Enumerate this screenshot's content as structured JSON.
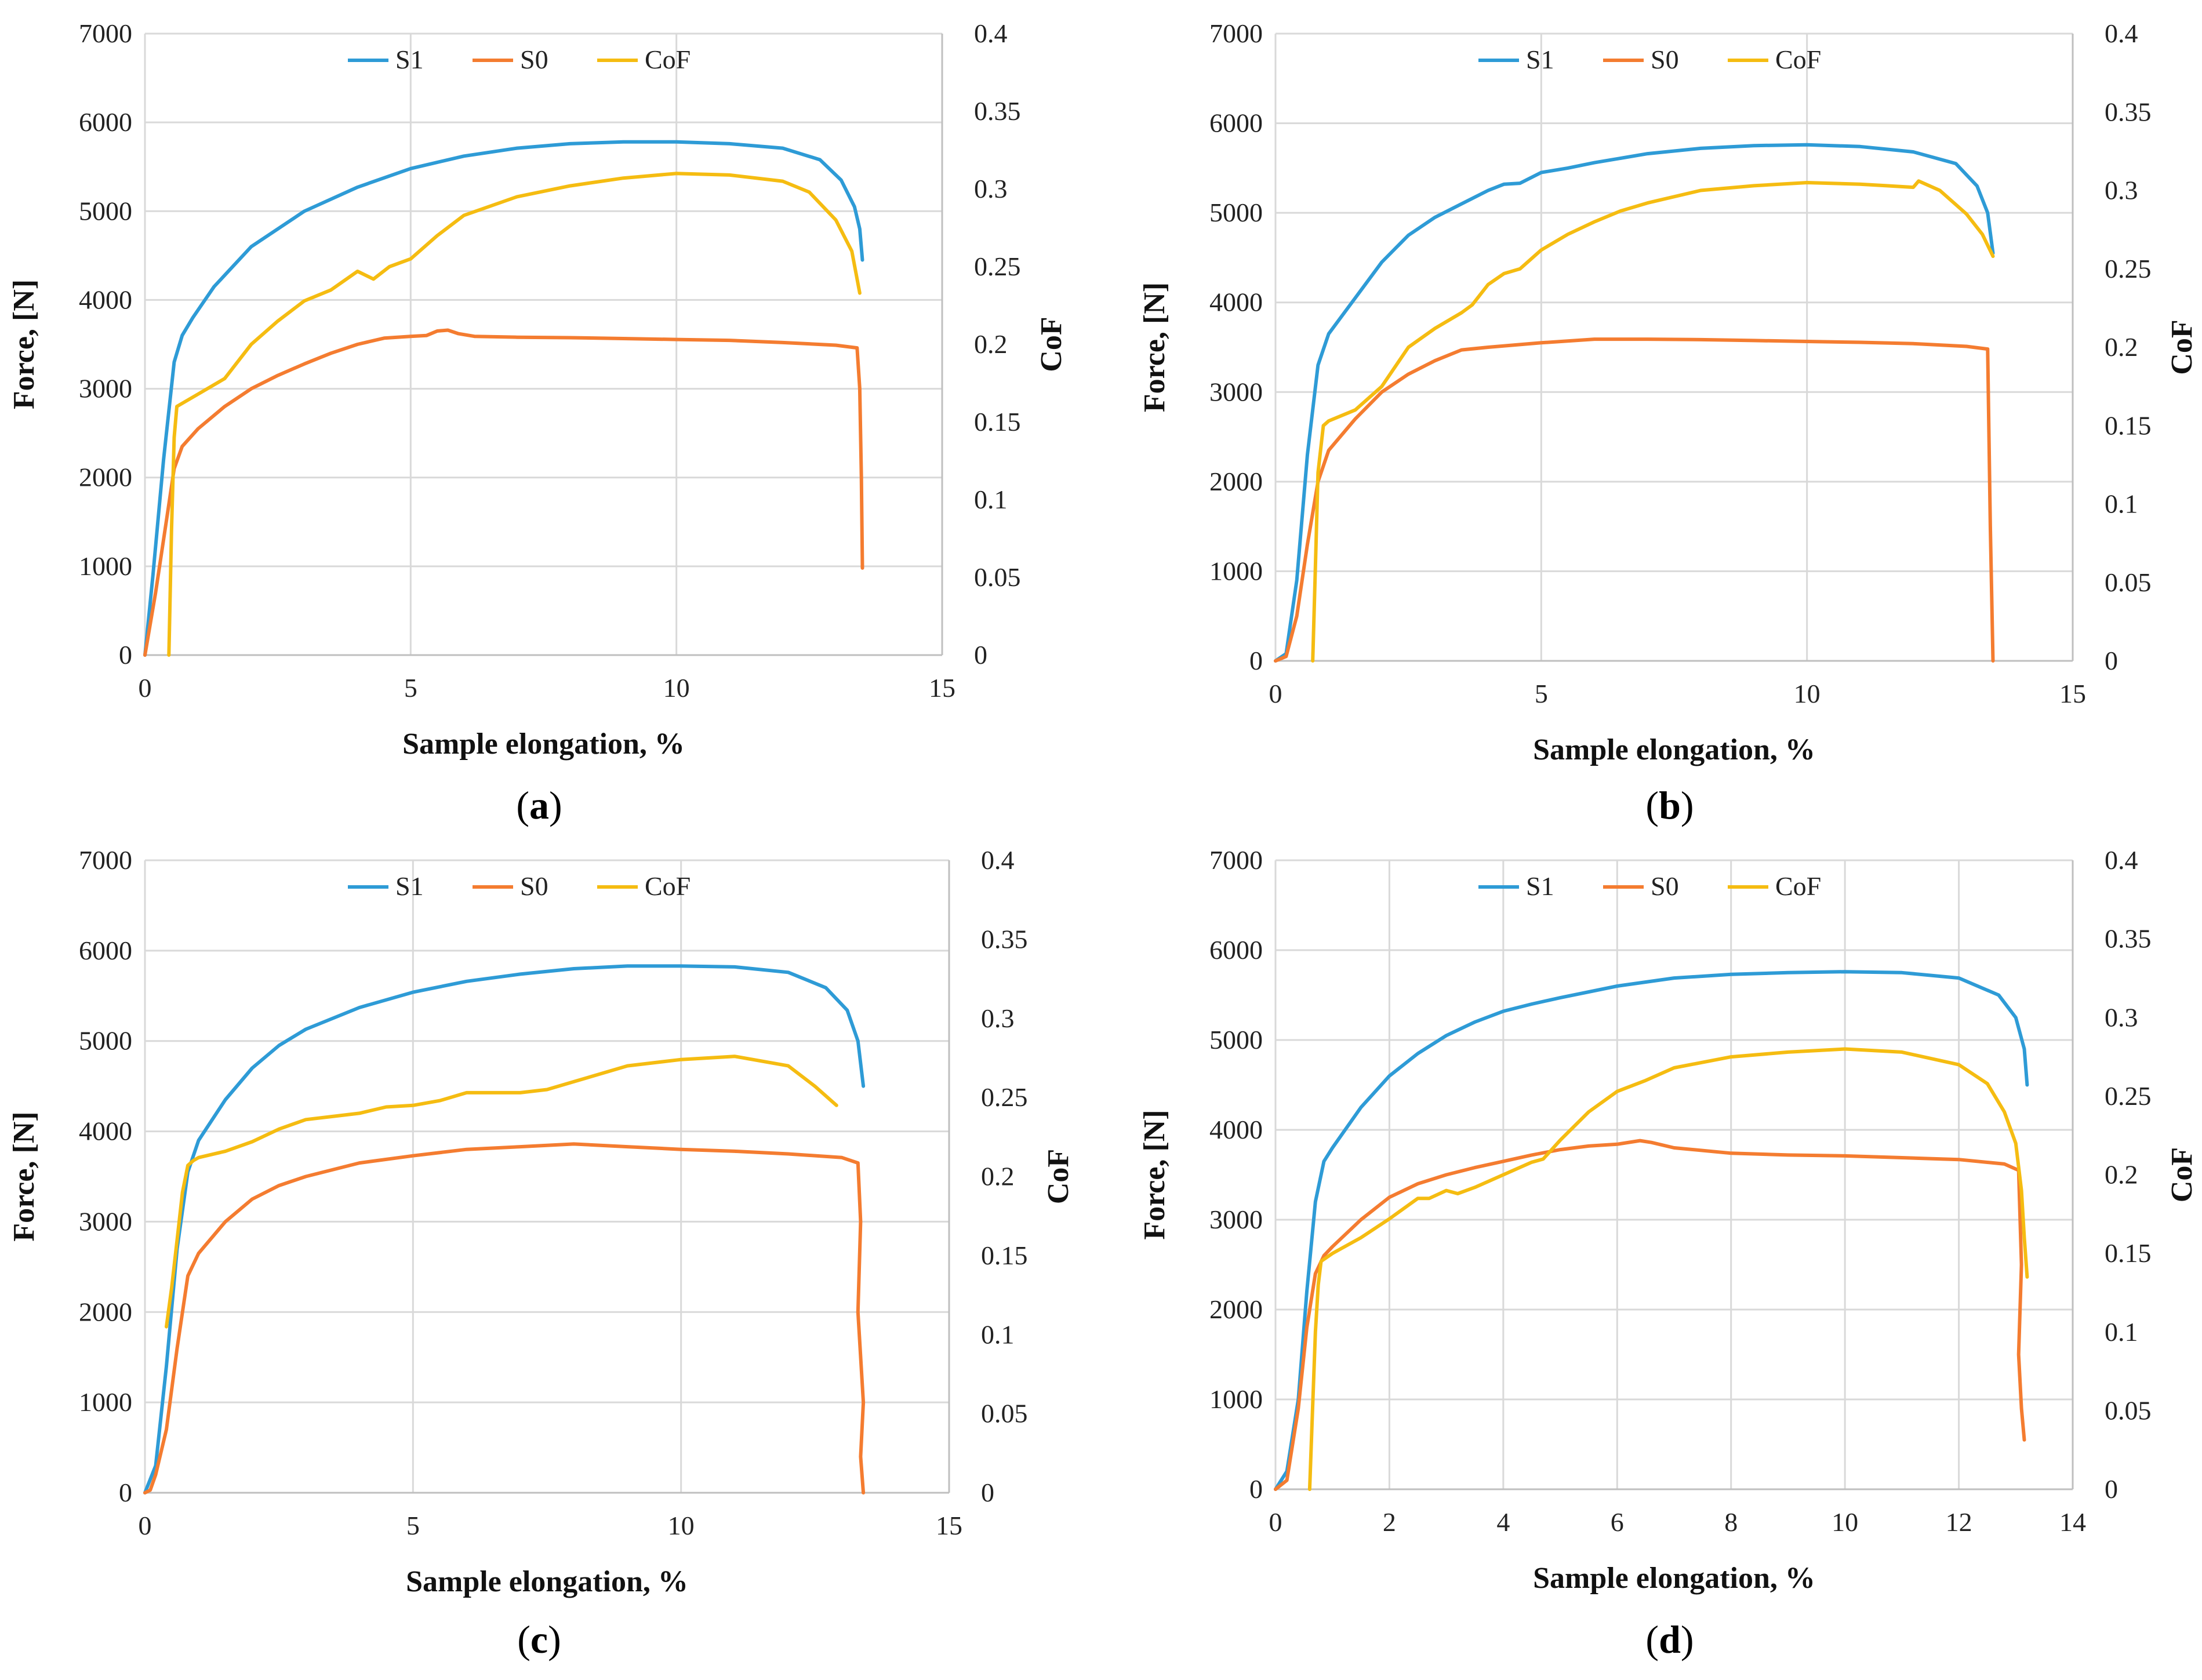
{
  "colors": {
    "S1": "#2E9BD6",
    "S0": "#F47C30",
    "CoF": "#F5BC11",
    "grid": "#D9D9D9",
    "axis": "#BFBFBF"
  },
  "chart_data": [
    {
      "id": "a",
      "type": "line",
      "label_open": "(",
      "label_letter": "a",
      "label_close": ")",
      "xlabel": "Sample elongation, %",
      "ylabel": "Force, [N]",
      "y2label": "CoF",
      "xlim": [
        0,
        15
      ],
      "xticks": [
        0,
        5,
        10,
        15
      ],
      "ylim": [
        0,
        7000
      ],
      "yticks": [
        0,
        1000,
        2000,
        3000,
        4000,
        5000,
        6000,
        7000
      ],
      "y2lim": [
        0,
        0.4
      ],
      "y2ticks": [
        0,
        0.05,
        0.1,
        0.15,
        0.2,
        0.25,
        0.3,
        0.35,
        0.4
      ],
      "legend": [
        "S1",
        "S0",
        "CoF"
      ],
      "series": [
        {
          "name": "S1",
          "axis": "y",
          "x": [
            0,
            0.15,
            0.35,
            0.55,
            0.7,
            0.9,
            1.3,
            2,
            3,
            4,
            5,
            6,
            7,
            8,
            9,
            10,
            11,
            12,
            12.7,
            13.1,
            13.35,
            13.45,
            13.5
          ],
          "y": [
            0,
            900,
            2200,
            3300,
            3600,
            3800,
            4150,
            4600,
            5000,
            5270,
            5480,
            5620,
            5710,
            5760,
            5780,
            5780,
            5760,
            5710,
            5580,
            5350,
            5050,
            4800,
            4450
          ]
        },
        {
          "name": "S0",
          "axis": "y",
          "x": [
            0,
            0.2,
            0.4,
            0.55,
            0.7,
            1,
            1.5,
            2,
            2.5,
            3,
            3.5,
            4,
            4.5,
            5,
            5.3,
            5.5,
            5.7,
            5.9,
            6.2,
            7,
            8,
            9,
            10,
            11,
            12,
            13,
            13.4,
            13.45,
            13.48,
            13.5
          ],
          "y": [
            0,
            700,
            1500,
            2100,
            2350,
            2550,
            2800,
            3000,
            3150,
            3280,
            3400,
            3500,
            3570,
            3590,
            3600,
            3650,
            3660,
            3620,
            3590,
            3580,
            3575,
            3565,
            3555,
            3545,
            3520,
            3490,
            3460,
            3000,
            2000,
            980
          ]
        },
        {
          "name": "CoF",
          "axis": "y2",
          "x": [
            0.45,
            0.5,
            0.55,
            0.6,
            0.7,
            1,
            1.5,
            2,
            2.5,
            3,
            3.5,
            4,
            4.3,
            4.6,
            5,
            5.5,
            6,
            7,
            8,
            9,
            10,
            11,
            12,
            12.5,
            13,
            13.3,
            13.45
          ],
          "y": [
            0,
            0.08,
            0.14,
            0.16,
            0.162,
            0.168,
            0.178,
            0.2,
            0.215,
            0.228,
            0.235,
            0.247,
            0.242,
            0.25,
            0.255,
            0.27,
            0.283,
            0.295,
            0.302,
            0.307,
            0.31,
            0.309,
            0.305,
            0.298,
            0.28,
            0.26,
            0.233
          ]
        }
      ]
    },
    {
      "id": "b",
      "type": "line",
      "label_open": "(",
      "label_letter": "b",
      "label_close": ")",
      "xlabel": "Sample elongation, %",
      "ylabel": "Force, [N]",
      "y2label": "CoF",
      "xlim": [
        0,
        15
      ],
      "xticks": [
        0,
        5,
        10,
        15
      ],
      "ylim": [
        0,
        7000
      ],
      "yticks": [
        0,
        1000,
        2000,
        3000,
        4000,
        5000,
        6000,
        7000
      ],
      "y2lim": [
        0,
        0.4
      ],
      "y2ticks": [
        0,
        0.05,
        0.1,
        0.15,
        0.2,
        0.25,
        0.3,
        0.35,
        0.4
      ],
      "legend": [
        "S1",
        "S0",
        "CoF"
      ],
      "series": [
        {
          "name": "S1",
          "axis": "y",
          "x": [
            0,
            0.2,
            0.4,
            0.6,
            0.8,
            1,
            1.5,
            2,
            2.5,
            3,
            3.5,
            4,
            4.3,
            4.6,
            5,
            5.5,
            6,
            7,
            8,
            9,
            10,
            11,
            12,
            12.8,
            13.2,
            13.4,
            13.5
          ],
          "y": [
            0,
            80,
            900,
            2300,
            3300,
            3650,
            4050,
            4450,
            4750,
            4950,
            5100,
            5250,
            5320,
            5330,
            5450,
            5500,
            5560,
            5660,
            5720,
            5750,
            5760,
            5740,
            5680,
            5550,
            5300,
            5000,
            4550
          ]
        },
        {
          "name": "S0",
          "axis": "y",
          "x": [
            0,
            0.2,
            0.4,
            0.6,
            0.8,
            1,
            1.5,
            2,
            2.5,
            3,
            3.5,
            4,
            5,
            6,
            7,
            8,
            9,
            10,
            11,
            12,
            13,
            13.4,
            13.45,
            13.5
          ],
          "y": [
            0,
            50,
            500,
            1300,
            2000,
            2350,
            2700,
            3000,
            3200,
            3350,
            3470,
            3500,
            3550,
            3590,
            3590,
            3585,
            3575,
            3565,
            3555,
            3540,
            3510,
            3480,
            1500,
            0
          ]
        },
        {
          "name": "CoF",
          "axis": "y2",
          "x": [
            0.7,
            0.75,
            0.8,
            0.9,
            1,
            1.5,
            2,
            2.5,
            3,
            3.5,
            3.7,
            4,
            4.3,
            4.6,
            5,
            5.5,
            6,
            6.5,
            7,
            8,
            9,
            10,
            11,
            11.5,
            12,
            12.1,
            12.5,
            13,
            13.3,
            13.5
          ],
          "y": [
            0,
            0.06,
            0.12,
            0.15,
            0.153,
            0.16,
            0.175,
            0.2,
            0.212,
            0.222,
            0.227,
            0.24,
            0.247,
            0.25,
            0.262,
            0.272,
            0.28,
            0.287,
            0.292,
            0.3,
            0.303,
            0.305,
            0.304,
            0.303,
            0.302,
            0.306,
            0.3,
            0.285,
            0.272,
            0.258
          ]
        }
      ]
    },
    {
      "id": "c",
      "type": "line",
      "label_open": "(",
      "label_letter": "c",
      "label_close": ")",
      "xlabel": "Sample elongation, %",
      "ylabel": "Force, [N]",
      "y2label": "CoF",
      "xlim": [
        0,
        15
      ],
      "xticks": [
        0,
        5,
        10,
        15
      ],
      "ylim": [
        0,
        7000
      ],
      "yticks": [
        0,
        1000,
        2000,
        3000,
        4000,
        5000,
        6000,
        7000
      ],
      "y2lim": [
        0,
        0.4
      ],
      "y2ticks": [
        0,
        0.05,
        0.1,
        0.15,
        0.2,
        0.25,
        0.3,
        0.35,
        0.4
      ],
      "legend": [
        "S1",
        "S0",
        "CoF"
      ],
      "series": [
        {
          "name": "S1",
          "axis": "y",
          "x": [
            0,
            0.2,
            0.4,
            0.6,
            0.8,
            1,
            1.5,
            2,
            2.5,
            3,
            4,
            5,
            6,
            7,
            8,
            9,
            10,
            11,
            12,
            12.7,
            13.1,
            13.3,
            13.4
          ],
          "y": [
            0,
            300,
            1400,
            2700,
            3550,
            3900,
            4350,
            4700,
            4950,
            5130,
            5370,
            5540,
            5660,
            5740,
            5800,
            5830,
            5830,
            5820,
            5760,
            5590,
            5340,
            5000,
            4500
          ]
        },
        {
          "name": "S0",
          "axis": "y",
          "x": [
            0,
            0.1,
            0.2,
            0.4,
            0.6,
            0.8,
            1,
            1.5,
            2,
            2.5,
            3,
            4,
            5,
            6,
            7,
            8,
            9,
            10,
            11,
            12,
            13,
            13.3,
            13.35,
            13.3,
            13.4,
            13.35,
            13.4
          ],
          "y": [
            0,
            30,
            200,
            700,
            1600,
            2400,
            2650,
            3000,
            3250,
            3400,
            3500,
            3650,
            3730,
            3800,
            3830,
            3860,
            3830,
            3800,
            3780,
            3750,
            3710,
            3650,
            3000,
            2000,
            1000,
            400,
            0
          ]
        },
        {
          "name": "CoF",
          "axis": "y2",
          "x": [
            0.4,
            0.5,
            0.6,
            0.7,
            0.8,
            0.9,
            1,
            1.5,
            2,
            2.5,
            3,
            3.5,
            4,
            4.5,
            5,
            5.5,
            6,
            7,
            7.5,
            8,
            8.5,
            9,
            10,
            11,
            12,
            12.5,
            12.9
          ],
          "y": [
            0.105,
            0.13,
            0.16,
            0.19,
            0.207,
            0.21,
            0.212,
            0.216,
            0.222,
            0.23,
            0.236,
            0.238,
            0.24,
            0.244,
            0.245,
            0.248,
            0.253,
            0.253,
            0.255,
            0.26,
            0.265,
            0.27,
            0.274,
            0.276,
            0.27,
            0.257,
            0.245
          ]
        }
      ]
    },
    {
      "id": "d",
      "type": "line",
      "label_open": "(",
      "label_letter": "d",
      "label_close": ")",
      "xlabel": "Sample elongation, %",
      "ylabel": "Force, [N]",
      "y2label": "CoF",
      "xlim": [
        0,
        14
      ],
      "xticks": [
        0,
        2,
        4,
        6,
        8,
        10,
        12,
        14
      ],
      "ylim": [
        0,
        7000
      ],
      "yticks": [
        0,
        1000,
        2000,
        3000,
        4000,
        5000,
        6000,
        7000
      ],
      "y2lim": [
        0,
        0.4
      ],
      "y2ticks": [
        0,
        0.05,
        0.1,
        0.15,
        0.2,
        0.25,
        0.3,
        0.35,
        0.4
      ],
      "legend": [
        "S1",
        "S0",
        "CoF"
      ],
      "series": [
        {
          "name": "S1",
          "axis": "y",
          "x": [
            0,
            0.2,
            0.4,
            0.55,
            0.7,
            0.85,
            1,
            1.5,
            2,
            2.5,
            3,
            3.5,
            4,
            4.5,
            5,
            6,
            7,
            8,
            9,
            10,
            11,
            12,
            12.7,
            13,
            13.15,
            13.2
          ],
          "y": [
            0,
            200,
            1000,
            2200,
            3200,
            3650,
            3800,
            4250,
            4600,
            4850,
            5050,
            5200,
            5320,
            5400,
            5470,
            5600,
            5690,
            5730,
            5750,
            5760,
            5750,
            5690,
            5500,
            5250,
            4900,
            4500
          ]
        },
        {
          "name": "S0",
          "axis": "y",
          "x": [
            0,
            0.2,
            0.4,
            0.55,
            0.7,
            0.85,
            1,
            1.5,
            2,
            2.5,
            3,
            3.5,
            4,
            4.5,
            5,
            5.5,
            6,
            6.4,
            6.6,
            7,
            8,
            9,
            10,
            11,
            12,
            12.8,
            13.05,
            13.1,
            13.05,
            13.1,
            13.15
          ],
          "y": [
            0,
            100,
            900,
            1800,
            2400,
            2600,
            2700,
            3000,
            3250,
            3400,
            3500,
            3580,
            3650,
            3720,
            3780,
            3820,
            3840,
            3880,
            3860,
            3800,
            3740,
            3720,
            3710,
            3690,
            3670,
            3620,
            3550,
            2500,
            1500,
            900,
            550
          ]
        },
        {
          "name": "CoF",
          "axis": "y2",
          "x": [
            0.6,
            0.65,
            0.7,
            0.75,
            0.8,
            1,
            1.5,
            2,
            2.5,
            2.7,
            3,
            3.2,
            3.5,
            4,
            4.5,
            4.7,
            5,
            5.5,
            6,
            6.5,
            7,
            8,
            9,
            10,
            11,
            12,
            12.5,
            12.8,
            13,
            13.1,
            13.15,
            13.2
          ],
          "y": [
            0,
            0.05,
            0.1,
            0.13,
            0.145,
            0.15,
            0.16,
            0.172,
            0.185,
            0.185,
            0.19,
            0.188,
            0.192,
            0.2,
            0.208,
            0.21,
            0.222,
            0.24,
            0.253,
            0.26,
            0.268,
            0.275,
            0.278,
            0.28,
            0.278,
            0.27,
            0.258,
            0.24,
            0.22,
            0.19,
            0.16,
            0.135
          ]
        }
      ]
    }
  ]
}
